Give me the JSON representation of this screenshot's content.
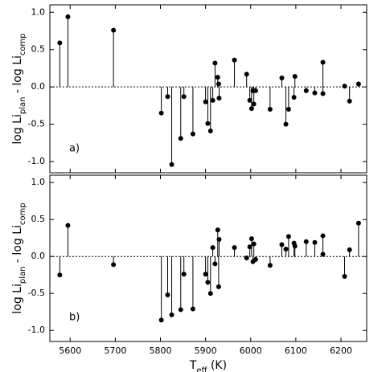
{
  "chart_data": [
    {
      "type": "stem",
      "annotation": "a)",
      "ylabel": [
        "log Li",
        "plan",
        " - log Li",
        "comp"
      ],
      "x": [
        5577,
        5595,
        5696,
        5802,
        5816,
        5825,
        5845,
        5852,
        5872,
        5900,
        5905,
        5911,
        5916,
        5921,
        5927,
        5929,
        5930,
        5964,
        5991,
        5998,
        6002,
        6005,
        6007,
        6011,
        6043,
        6069,
        6078,
        6084,
        6096,
        6098,
        6123,
        6142,
        6160,
        6160,
        6208,
        6219,
        6239
      ],
      "values": [
        0.59,
        0.94,
        0.76,
        -0.35,
        -0.13,
        -1.04,
        -0.69,
        -0.13,
        -0.63,
        -0.2,
        -0.49,
        -0.59,
        -0.18,
        0.32,
        0.13,
        0.04,
        -0.15,
        0.36,
        0.17,
        -0.18,
        -0.29,
        -0.05,
        -0.23,
        -0.05,
        -0.3,
        0.12,
        -0.5,
        -0.3,
        -0.14,
        0.14,
        -0.05,
        -0.08,
        0.33,
        -0.09,
        0.01,
        -0.19,
        0.04
      ],
      "color": "#000000",
      "xlim": [
        5555,
        6257
      ],
      "xticks": [
        5600,
        5700,
        5800,
        5900,
        6000,
        6100,
        6200
      ],
      "show_xtick_labels": false,
      "ylim": [
        -1.15,
        1.1
      ],
      "yticks": [
        {
          "value": -1,
          "label": "-1.0"
        },
        -0.5,
        {
          "value": 0,
          "label": "0.0"
        },
        0.5,
        {
          "value": 1,
          "label": "1.0"
        }
      ],
      "zero_line": true
    },
    {
      "type": "stem",
      "annotation": "b)",
      "ylabel": [
        "log Li",
        "plan",
        " - log Li",
        "comp"
      ],
      "xlabel": [
        "T",
        "eff",
        " (K)"
      ],
      "x": [
        5577,
        5595,
        5696,
        5802,
        5816,
        5825,
        5845,
        5852,
        5872,
        5900,
        5905,
        5911,
        5916,
        5921,
        5927,
        5929,
        5930,
        5964,
        5991,
        5998,
        6002,
        6005,
        6007,
        6011,
        6043,
        6069,
        6078,
        6084,
        6096,
        6098,
        6123,
        6142,
        6160,
        6160,
        6208,
        6219,
        6239
      ],
      "values": [
        -0.25,
        0.42,
        -0.11,
        -0.86,
        -0.52,
        -0.79,
        -0.72,
        -0.24,
        -0.71,
        -0.24,
        -0.35,
        -0.5,
        0.12,
        -0.1,
        0.36,
        -0.41,
        0.23,
        0.12,
        -0.02,
        0.13,
        0.24,
        -0.07,
        0.17,
        -0.04,
        -0.12,
        0.16,
        0.1,
        0.27,
        0.18,
        0.14,
        0.2,
        0.19,
        0.28,
        0.03,
        -0.27,
        0.09,
        0.45
      ],
      "color": "#000000",
      "xlim": [
        5555,
        6257
      ],
      "xticks": [
        5600,
        5700,
        5800,
        5900,
        6000,
        6100,
        6200
      ],
      "show_xtick_labels": true,
      "ylim": [
        -1.15,
        1.1
      ],
      "yticks": [
        {
          "value": -1,
          "label": "-1.0"
        },
        -0.5,
        {
          "value": 0,
          "label": "0.0"
        },
        0.5,
        {
          "value": 1,
          "label": "1.0"
        }
      ],
      "zero_line": true
    }
  ]
}
